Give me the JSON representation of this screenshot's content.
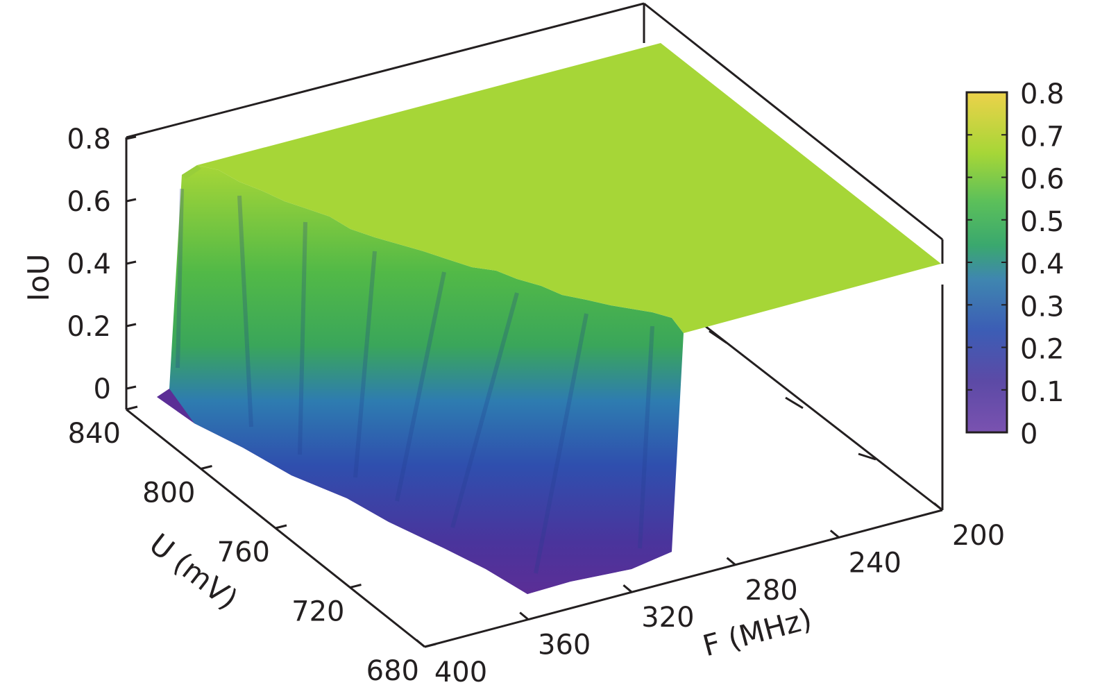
{
  "chart_data": {
    "type": "surface",
    "zlabel": "IoU",
    "xlabel": "F (MHz)",
    "ylabel": "U (mV)",
    "x_ticks": [
      "400",
      "360",
      "320",
      "280",
      "240",
      "200"
    ],
    "y_ticks": [
      "840",
      "800",
      "760",
      "720",
      "680"
    ],
    "z_ticks": [
      "0",
      "0.2",
      "0.4",
      "0.6",
      "0.8"
    ],
    "colorbar_ticks": [
      "0",
      "0.1",
      "0.2",
      "0.3",
      "0.4",
      "0.5",
      "0.6",
      "0.7",
      "0.8"
    ],
    "xlim": [
      200,
      400
    ],
    "ylim": [
      680,
      840
    ],
    "zlim": [
      0,
      0.8
    ],
    "colormap": "parula",
    "plateau_value": 0.72,
    "low_region": {
      "description": "IoU near 0 where F >= ~300 MHz and U <= ~800 mV, rising to plateau at edges",
      "F_min_mhz": 300,
      "F_max_mhz": 400,
      "U_min_mv": 680,
      "U_max_mv": 800,
      "floor_value": 0.0
    },
    "colors": {
      "low": "#5a2d94",
      "mid": "#2f63b8",
      "green": "#4bba4b",
      "high": "#a6d637",
      "top": "#f0d840",
      "axis": "#231f20"
    }
  }
}
